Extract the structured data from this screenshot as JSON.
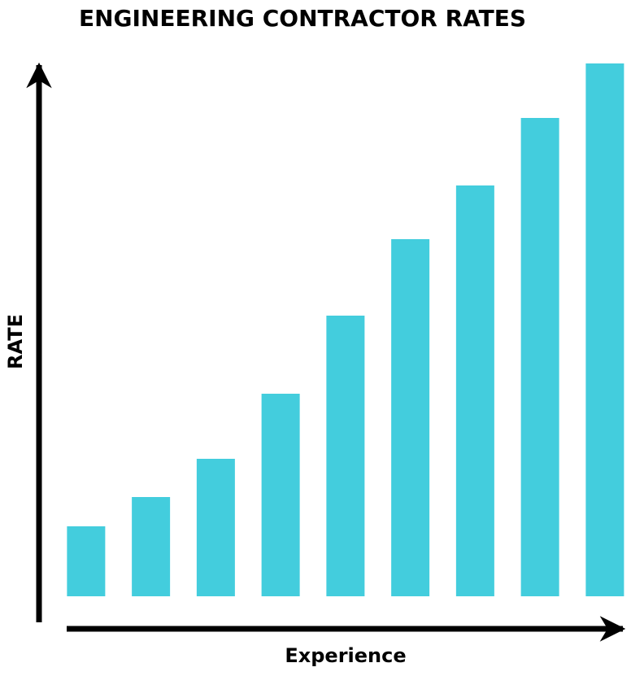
{
  "chart_data": {
    "type": "bar",
    "title": "ENGINEERING CONTRACTOR RATES",
    "x_label": "Experience",
    "y_label": "RATE",
    "categories": [
      null,
      null,
      null,
      null,
      null,
      null,
      null,
      null,
      null
    ],
    "values": [
      86,
      122,
      169,
      249,
      345,
      439,
      505,
      588,
      655
    ],
    "color": "#43cddd",
    "ylim": [
      0,
      655
    ]
  }
}
